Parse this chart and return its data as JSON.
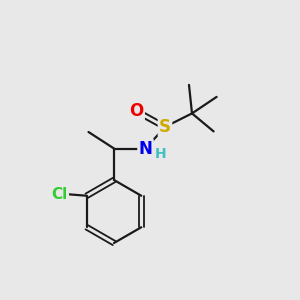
{
  "bg_color": "#e8e8e8",
  "atom_colors": {
    "C": "#1a1a1a",
    "H": "#40c0c0",
    "N": "#0000ee",
    "O": "#ee0000",
    "S": "#ccaa00",
    "Cl": "#33cc33"
  },
  "bond_color": "#1a1a1a",
  "bond_width": 1.6,
  "figsize": [
    3.0,
    3.0
  ],
  "dpi": 100
}
